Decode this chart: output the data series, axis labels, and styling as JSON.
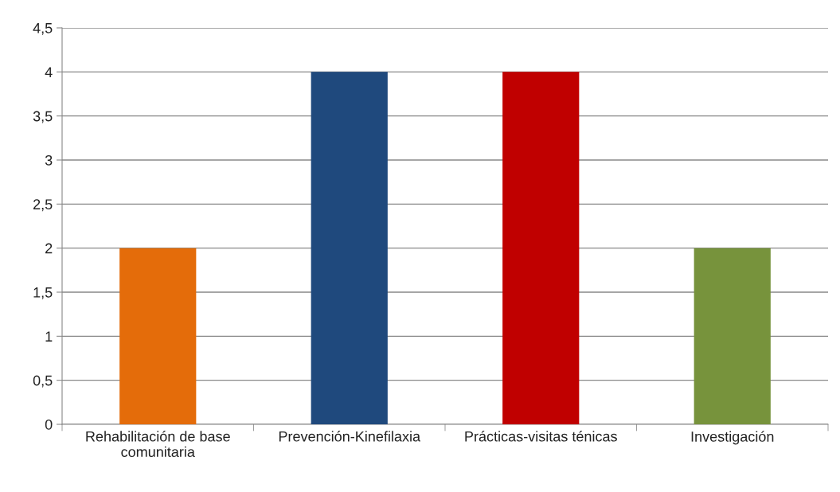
{
  "chart_data": {
    "type": "bar",
    "categories": [
      "Rehabilitación de base\ncomunitaria",
      "Prevención-Kinefilaxia",
      "Prácticas-visitas ténicas",
      "Investigación"
    ],
    "values": [
      2,
      4,
      4,
      2
    ],
    "colors": [
      "#e46c0a",
      "#1f497d",
      "#c00000",
      "#77933c"
    ],
    "ylim": [
      0,
      4.5
    ],
    "yticks": [
      0,
      {
        "value": 0.5,
        "label": "0,5"
      },
      1,
      {
        "value": 1.5,
        "label": "1,5"
      },
      2,
      {
        "value": 2.5,
        "label": "2,5"
      },
      3,
      {
        "value": 3.5,
        "label": "3,5"
      },
      4,
      {
        "value": 4.5,
        "label": "4,5"
      }
    ],
    "grid": "y",
    "legend": false
  }
}
